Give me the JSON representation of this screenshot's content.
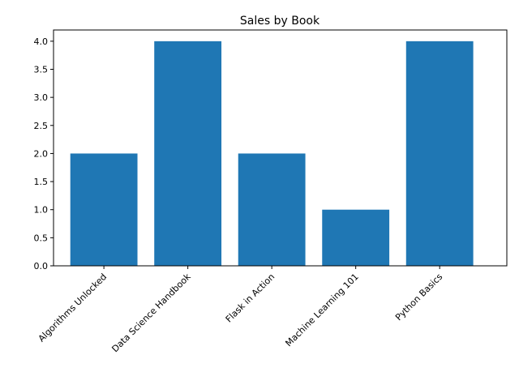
{
  "chart_data": {
    "type": "bar",
    "title": "Sales by Book",
    "xlabel": "",
    "ylabel": "",
    "categories": [
      "Algorithms Unlocked",
      "Data Science Handbook",
      "Flask in Action",
      "Machine Learning 101",
      "Python Basics"
    ],
    "values": [
      2,
      4,
      2,
      1,
      4
    ],
    "ylim": [
      0,
      4.2
    ],
    "yticks": [
      "0.0",
      "0.5",
      "1.0",
      "1.5",
      "2.0",
      "2.5",
      "3.0",
      "3.5",
      "4.0"
    ],
    "grid": false,
    "bar_color": "#1f77b4"
  }
}
